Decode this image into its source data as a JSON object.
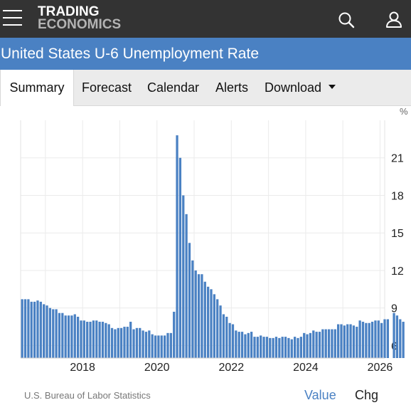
{
  "header": {
    "logo_line1": "TRADING",
    "logo_line2": "ECONOMICS",
    "page_title": "United States U-6 Unemployment Rate"
  },
  "tabs": [
    {
      "label": "Summary",
      "active": true
    },
    {
      "label": "Forecast",
      "active": false
    },
    {
      "label": "Calendar",
      "active": false
    },
    {
      "label": "Alerts",
      "active": false
    },
    {
      "label": "Download",
      "active": false
    }
  ],
  "colors": {
    "topbar": "#333333",
    "accent": "#4a81c3",
    "bar": "#4a81c3"
  },
  "footer": {
    "source": "U.S. Bureau of Labor Statistics",
    "value_label": "Value",
    "chg_label": "Chg"
  },
  "chart_data": {
    "type": "bar",
    "title": "",
    "xlabel": "",
    "ylabel": "",
    "unit": "%",
    "ylim": [
      5,
      24
    ],
    "y_ticks": [
      6,
      9,
      12,
      15,
      18,
      21
    ],
    "x_ticks": [
      "2018",
      "2020",
      "2022",
      "2024",
      "2026"
    ],
    "x_start": "2016-05",
    "grid": true,
    "y_axis_position": "right",
    "values": [
      9.7,
      9.7,
      9.7,
      9.5,
      9.5,
      9.6,
      9.5,
      9.3,
      9.2,
      9.0,
      8.9,
      8.9,
      8.6,
      8.6,
      8.4,
      8.4,
      8.4,
      8.5,
      8.3,
      8.0,
      8.0,
      7.9,
      7.9,
      8.0,
      8.0,
      7.9,
      7.9,
      7.8,
      7.7,
      7.4,
      7.3,
      7.4,
      7.4,
      7.5,
      7.5,
      7.9,
      7.3,
      7.4,
      7.4,
      7.2,
      7.1,
      7.2,
      6.9,
      6.8,
      6.8,
      6.8,
      6.8,
      7.0,
      7.0,
      8.7,
      22.8,
      21.0,
      18.0,
      16.5,
      14.2,
      12.8,
      12.0,
      11.7,
      11.7,
      11.1,
      10.7,
      10.5,
      10.1,
      9.7,
      9.2,
      8.5,
      8.3,
      7.8,
      7.7,
      7.2,
      7.1,
      7.1,
      6.9,
      7.0,
      7.1,
      6.7,
      6.7,
      6.8,
      6.7,
      6.7,
      6.6,
      6.6,
      6.7,
      6.6,
      6.7,
      6.7,
      6.6,
      6.5,
      6.7,
      6.6,
      6.7,
      7.0,
      6.9,
      7.0,
      7.2,
      7.1,
      7.1,
      7.3,
      7.3,
      7.3,
      7.3,
      7.3,
      7.7,
      7.7,
      7.6,
      7.7,
      7.7,
      7.6,
      7.5,
      8.0,
      7.9,
      7.8,
      7.8,
      7.9,
      8.0,
      8.0,
      7.8,
      8.1,
      8.1,
      null,
      8.6,
      8.4,
      8.1,
      7.9
    ]
  }
}
